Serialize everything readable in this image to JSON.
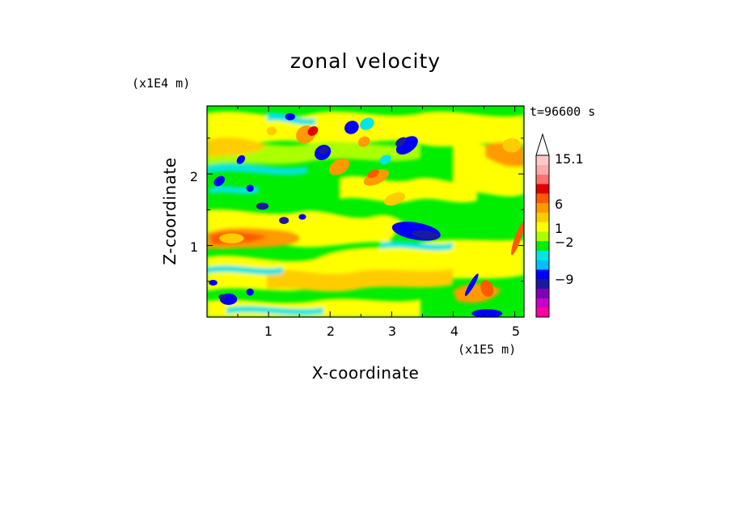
{
  "chart_data": {
    "type": "heatmap",
    "title": "zonal velocity",
    "xlabel": "X-coordinate",
    "ylabel": "Z-coordinate",
    "x_unit": "(x1E5 m)",
    "y_unit": "(x1E4 m)",
    "time_label": "t=96600 s",
    "xlim": [
      0,
      5.15
    ],
    "ylim": [
      0,
      2.95
    ],
    "x_ticks": [
      1,
      2,
      3,
      4,
      5
    ],
    "y_ticks": [
      1,
      2
    ],
    "colorbar": {
      "tick_labels": [
        "15.1",
        "6",
        "1",
        "−2",
        "−9"
      ],
      "tick_values": [
        15.1,
        6,
        1,
        -2,
        -9
      ],
      "colors": [
        "#ff00a0",
        "#c800c8",
        "#8000b4",
        "#1a1aa0",
        "#0000ff",
        "#00bfff",
        "#00e5e5",
        "#00ee00",
        "#aaff00",
        "#ffff00",
        "#ffcc00",
        "#ff9a00",
        "#ff5a00",
        "#e00000",
        "#ff7070",
        "#ffaaaa",
        "#ffc8c8",
        "#ffffff"
      ]
    }
  }
}
